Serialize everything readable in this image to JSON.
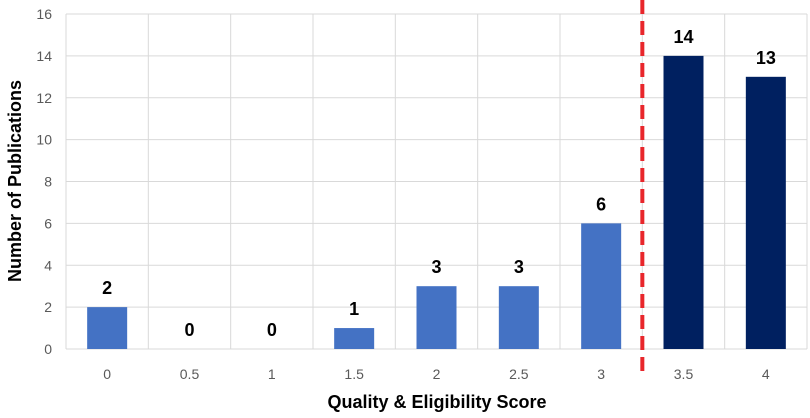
{
  "chart_data": {
    "type": "bar",
    "categories": [
      "0",
      "0.5",
      "1",
      "1.5",
      "2",
      "2.5",
      "3",
      "3.5",
      "4"
    ],
    "values": [
      2,
      0,
      0,
      1,
      3,
      3,
      6,
      14,
      13
    ],
    "data_labels": [
      "2",
      "0",
      "0",
      "1",
      "3",
      "3",
      "6",
      "14",
      "13"
    ],
    "xlabel": "Quality & Eligibility Score",
    "ylabel": "Number of Publications",
    "ylim": [
      0,
      16
    ],
    "yticks": [
      "0",
      "2",
      "4",
      "6",
      "8",
      "10",
      "12",
      "14",
      "16"
    ],
    "grid": true,
    "threshold_after_category": "3",
    "colors": {
      "below_threshold": "#4472C4",
      "above_threshold": "#002060",
      "threshold_line": "#E8262B",
      "grid": "#D9D9D9"
    }
  }
}
